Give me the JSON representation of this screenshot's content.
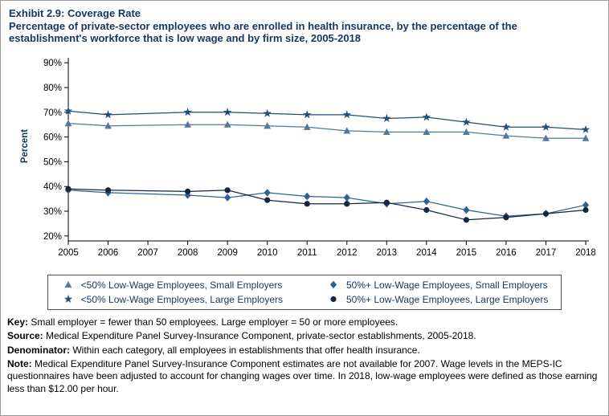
{
  "header": {
    "title": "Exhibit 2.9: Coverage Rate",
    "subtitle": "Percentage of private-sector employees who are enrolled in health insurance, by the percentage of the establishment's workforce that is low wage and by firm size, 2005-2018",
    "title_color": "#17365d"
  },
  "chart_data": {
    "type": "line",
    "title": "Coverage Rate",
    "xlabel": "",
    "ylabel": "Percent",
    "ylim": [
      20,
      90
    ],
    "ytick_step": 10,
    "ytick_suffix": "%",
    "grid": false,
    "legend_position": "bottom",
    "axis_color": "#000000",
    "missing_data_year": 2007,
    "x": [
      2005,
      2006,
      2007,
      2008,
      2009,
      2010,
      2011,
      2012,
      2013,
      2014,
      2015,
      2016,
      2017,
      2018
    ],
    "series": [
      {
        "name": "<50% Low-Wage Employees, Small Employers",
        "marker": "triangle",
        "color": "#54779c",
        "values": [
          65.5,
          64.5,
          null,
          65,
          65,
          64.5,
          64,
          62.5,
          62,
          62,
          62,
          60.5,
          59.5,
          59.5
        ]
      },
      {
        "name": "<50% Low-Wage Employees, Large Employers",
        "marker": "star",
        "color": "#1f4e79",
        "values": [
          70.5,
          69,
          null,
          70,
          70,
          69.5,
          69,
          69,
          67.5,
          68,
          66,
          64,
          64,
          63
        ]
      },
      {
        "name": "50%+ Low-Wage Employees, Small Employers",
        "marker": "diamond",
        "color": "#2f6293",
        "values": [
          38.5,
          37.5,
          null,
          36.5,
          35.5,
          37.5,
          36,
          35.5,
          33,
          34,
          30.5,
          28,
          29,
          32.5
        ]
      },
      {
        "name": "50%+ Low-Wage Employees, Large Employers",
        "marker": "circle",
        "color": "#14273f",
        "values": [
          39,
          38.5,
          null,
          38,
          38.5,
          34.5,
          33,
          33,
          33.5,
          30.5,
          26.5,
          27.5,
          29,
          30.5
        ]
      }
    ]
  },
  "footer": {
    "key": {
      "label": "Key:",
      "text": "Small employer = fewer than 50 employees. Large employer = 50 or more employees."
    },
    "source": {
      "label": "Source:",
      "text": "Medical Expenditure Panel Survey-Insurance Component, private-sector establishments, 2005-2018."
    },
    "denominator": {
      "label": "Denominator:",
      "text": "Within each category, all employees in establishments that offer health insurance."
    },
    "note": {
      "label": "Note:",
      "text": "Medical Expenditure Panel Survey-Insurance Component estimates are not available for 2007. Wage levels in the MEPS-IC questionnaires have been adjusted to account for changing wages over time. In 2018, low-wage employees were defined as those earning less than $12.00 per hour."
    }
  }
}
